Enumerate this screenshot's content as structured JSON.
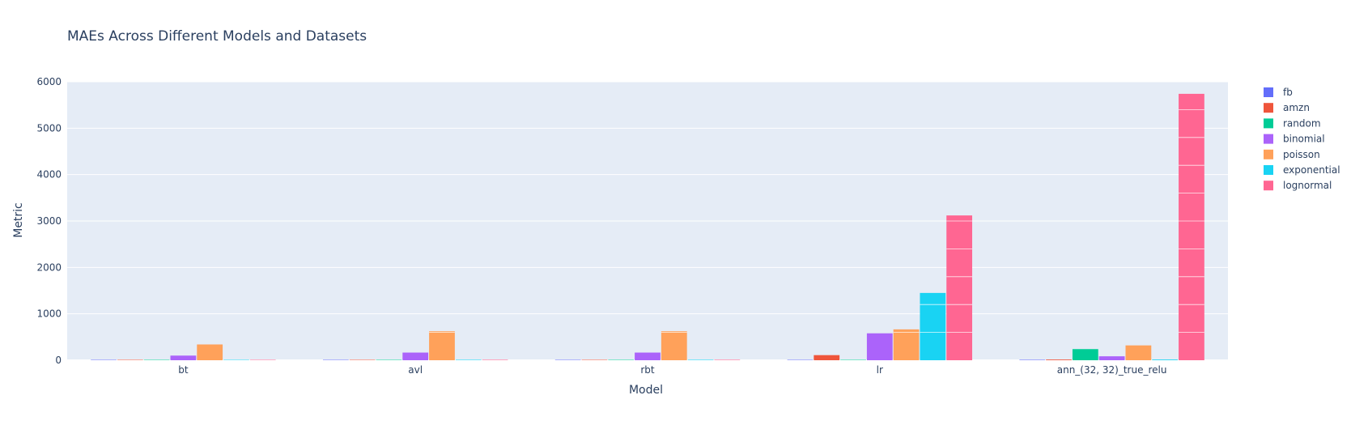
{
  "chart_data": {
    "type": "bar",
    "barmode": "group",
    "title": "MAEs Across Different Models and Datasets",
    "xlabel": "Model",
    "ylabel": "Metric",
    "ylim": [
      0,
      6000
    ],
    "yticks": [
      0,
      1000,
      2000,
      3000,
      4000,
      5000,
      6000
    ],
    "categories": [
      "bt",
      "avl",
      "rbt",
      "lr",
      "ann_(32, 32)_true_relu"
    ],
    "grid": true,
    "legend_position": "top-right",
    "series": [
      {
        "name": "fb",
        "color": "#636efa",
        "values": [
          2,
          3,
          3,
          5,
          10
        ]
      },
      {
        "name": "amzn",
        "color": "#ef553b",
        "values": [
          3,
          3,
          3,
          110,
          15
        ]
      },
      {
        "name": "random",
        "color": "#00cc96",
        "values": [
          2,
          3,
          3,
          5,
          240
        ]
      },
      {
        "name": "binomial",
        "color": "#ab63fa",
        "values": [
          100,
          165,
          165,
          580,
          85
        ]
      },
      {
        "name": "poisson",
        "color": "#ffa15a",
        "values": [
          340,
          625,
          625,
          665,
          320
        ]
      },
      {
        "name": "exponential",
        "color": "#19d3f3",
        "values": [
          5,
          10,
          10,
          1450,
          15
        ]
      },
      {
        "name": "lognormal",
        "color": "#ff6692",
        "values": [
          5,
          10,
          10,
          3120,
          5740
        ]
      }
    ]
  }
}
